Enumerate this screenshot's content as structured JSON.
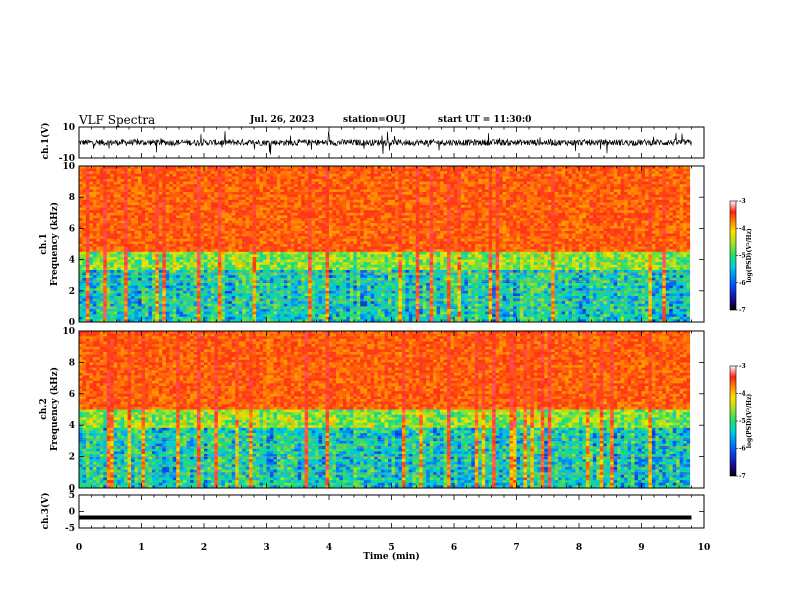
{
  "header": {
    "title": "VLF Spectra",
    "date": "Jul. 26, 2023",
    "station": "station=OUJ",
    "start": "start UT =  11:30:0"
  },
  "chart_data": [
    {
      "type": "line",
      "panel": "ch1-waveform",
      "ylabel": "ch.1(V)",
      "ylim": [
        -10,
        10
      ],
      "ytick_labels": [
        "10",
        "-10"
      ],
      "xlim": [
        0,
        10
      ],
      "data_extent_min": [
        0,
        9.8
      ],
      "series": [
        {
          "baseline": 0,
          "range_approx": [
            -5,
            5
          ]
        }
      ]
    },
    {
      "type": "heatmap",
      "panel": "ch1-spectrogram",
      "ylabel_line1": "ch.1",
      "ylabel_line2": "Frequency (kHz)",
      "ylim": [
        0,
        10
      ],
      "ytick_labels": [
        "0",
        "2",
        "4",
        "6",
        "8",
        "10"
      ],
      "xlim": [
        0,
        10
      ],
      "colorbar": {
        "label": "log(PSD)(V²/Hz)",
        "range": [
          -7,
          -3
        ],
        "tick_labels": [
          "-3",
          "-4",
          "-5",
          "-6",
          "-7"
        ]
      }
    },
    {
      "type": "heatmap",
      "panel": "ch2-spectrogram",
      "ylabel_line1": "ch.2",
      "ylabel_line2": "Frequency (kHz)",
      "ylim": [
        0,
        10
      ],
      "ytick_labels": [
        "0",
        "2",
        "4",
        "6",
        "8",
        "10"
      ],
      "xlim": [
        0,
        10
      ],
      "colorbar": {
        "label": "log(PSD)(V²/Hz)",
        "range": [
          -7,
          -3
        ],
        "tick_labels": [
          "-3",
          "-4",
          "-5",
          "-6",
          "-7"
        ]
      }
    },
    {
      "type": "line",
      "panel": "ch3-waveform",
      "ylabel": "ch.3(V)",
      "ylim": [
        -5,
        5
      ],
      "ytick_labels": [
        "5",
        "0",
        "-5"
      ],
      "xlim": [
        0,
        10
      ],
      "series": [
        {
          "constant_value": -1.8
        }
      ]
    }
  ],
  "xaxis": {
    "label": "Time (min)",
    "tick_labels": [
      "0",
      "1",
      "2",
      "3",
      "4",
      "5",
      "6",
      "7",
      "8",
      "9",
      "10"
    ]
  }
}
